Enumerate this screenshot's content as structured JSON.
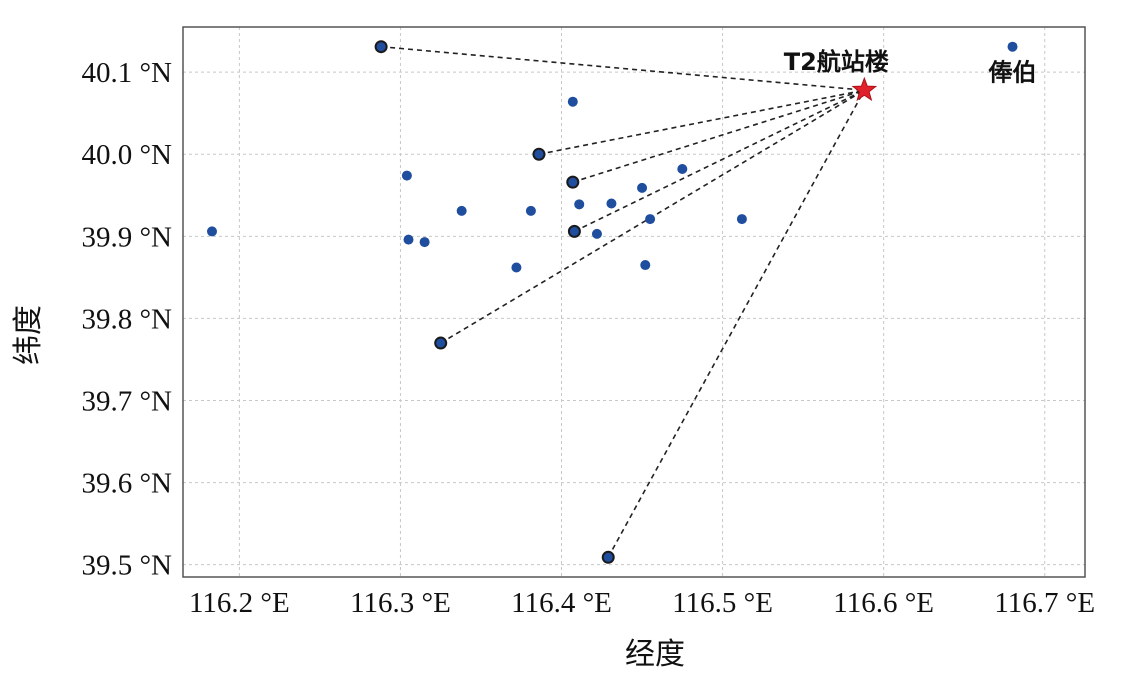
{
  "chart_data": {
    "type": "scatter",
    "title": "",
    "xlabel": "经度",
    "ylabel": "纬度",
    "xlim": [
      116.165,
      116.725
    ],
    "ylim": [
      39.485,
      40.155
    ],
    "grid": true,
    "x_ticks": [
      {
        "value": 116.2,
        "label": "116.2 °E"
      },
      {
        "value": 116.3,
        "label": "116.3 °E"
      },
      {
        "value": 116.4,
        "label": "116.4 °E"
      },
      {
        "value": 116.5,
        "label": "116.5 °E"
      },
      {
        "value": 116.6,
        "label": "116.6 °E"
      },
      {
        "value": 116.7,
        "label": "116.7 °E"
      }
    ],
    "y_ticks": [
      {
        "value": 39.5,
        "label": "39.5 °N"
      },
      {
        "value": 39.6,
        "label": "39.6 °N"
      },
      {
        "value": 39.7,
        "label": "39.7 °N"
      },
      {
        "value": 39.8,
        "label": "39.8 °N"
      },
      {
        "value": 39.9,
        "label": "39.9 °N"
      },
      {
        "value": 40.0,
        "label": "40.0 °N"
      },
      {
        "value": 40.1,
        "label": "40.1 °N"
      }
    ],
    "target": {
      "name": "T2航站楼",
      "x": 116.588,
      "y": 40.078,
      "marker": "star",
      "color": "#e0202a"
    },
    "points": [
      {
        "x": 116.183,
        "y": 39.906,
        "connected": false
      },
      {
        "x": 116.288,
        "y": 40.131,
        "connected": true
      },
      {
        "x": 116.304,
        "y": 39.974,
        "connected": false
      },
      {
        "x": 116.305,
        "y": 39.896,
        "connected": false
      },
      {
        "x": 116.315,
        "y": 39.893,
        "connected": false
      },
      {
        "x": 116.325,
        "y": 39.77,
        "connected": true
      },
      {
        "x": 116.338,
        "y": 39.931,
        "connected": false
      },
      {
        "x": 116.372,
        "y": 39.862,
        "connected": false
      },
      {
        "x": 116.381,
        "y": 39.931,
        "connected": false
      },
      {
        "x": 116.386,
        "y": 40.0,
        "connected": true
      },
      {
        "x": 116.407,
        "y": 40.064,
        "connected": false
      },
      {
        "x": 116.407,
        "y": 39.966,
        "connected": true
      },
      {
        "x": 116.408,
        "y": 39.906,
        "connected": true
      },
      {
        "x": 116.411,
        "y": 39.939,
        "connected": false
      },
      {
        "x": 116.422,
        "y": 39.903,
        "connected": false
      },
      {
        "x": 116.429,
        "y": 39.509,
        "connected": true
      },
      {
        "x": 116.431,
        "y": 39.94,
        "connected": false
      },
      {
        "x": 116.45,
        "y": 39.959,
        "connected": false
      },
      {
        "x": 116.452,
        "y": 39.865,
        "connected": false
      },
      {
        "x": 116.455,
        "y": 39.921,
        "connected": false
      },
      {
        "x": 116.475,
        "y": 39.982,
        "connected": false
      },
      {
        "x": 116.512,
        "y": 39.921,
        "connected": false
      },
      {
        "x": 116.68,
        "y": 40.131,
        "connected": false,
        "label": "俸伯"
      }
    ],
    "point_color": "#1f4e9e"
  }
}
